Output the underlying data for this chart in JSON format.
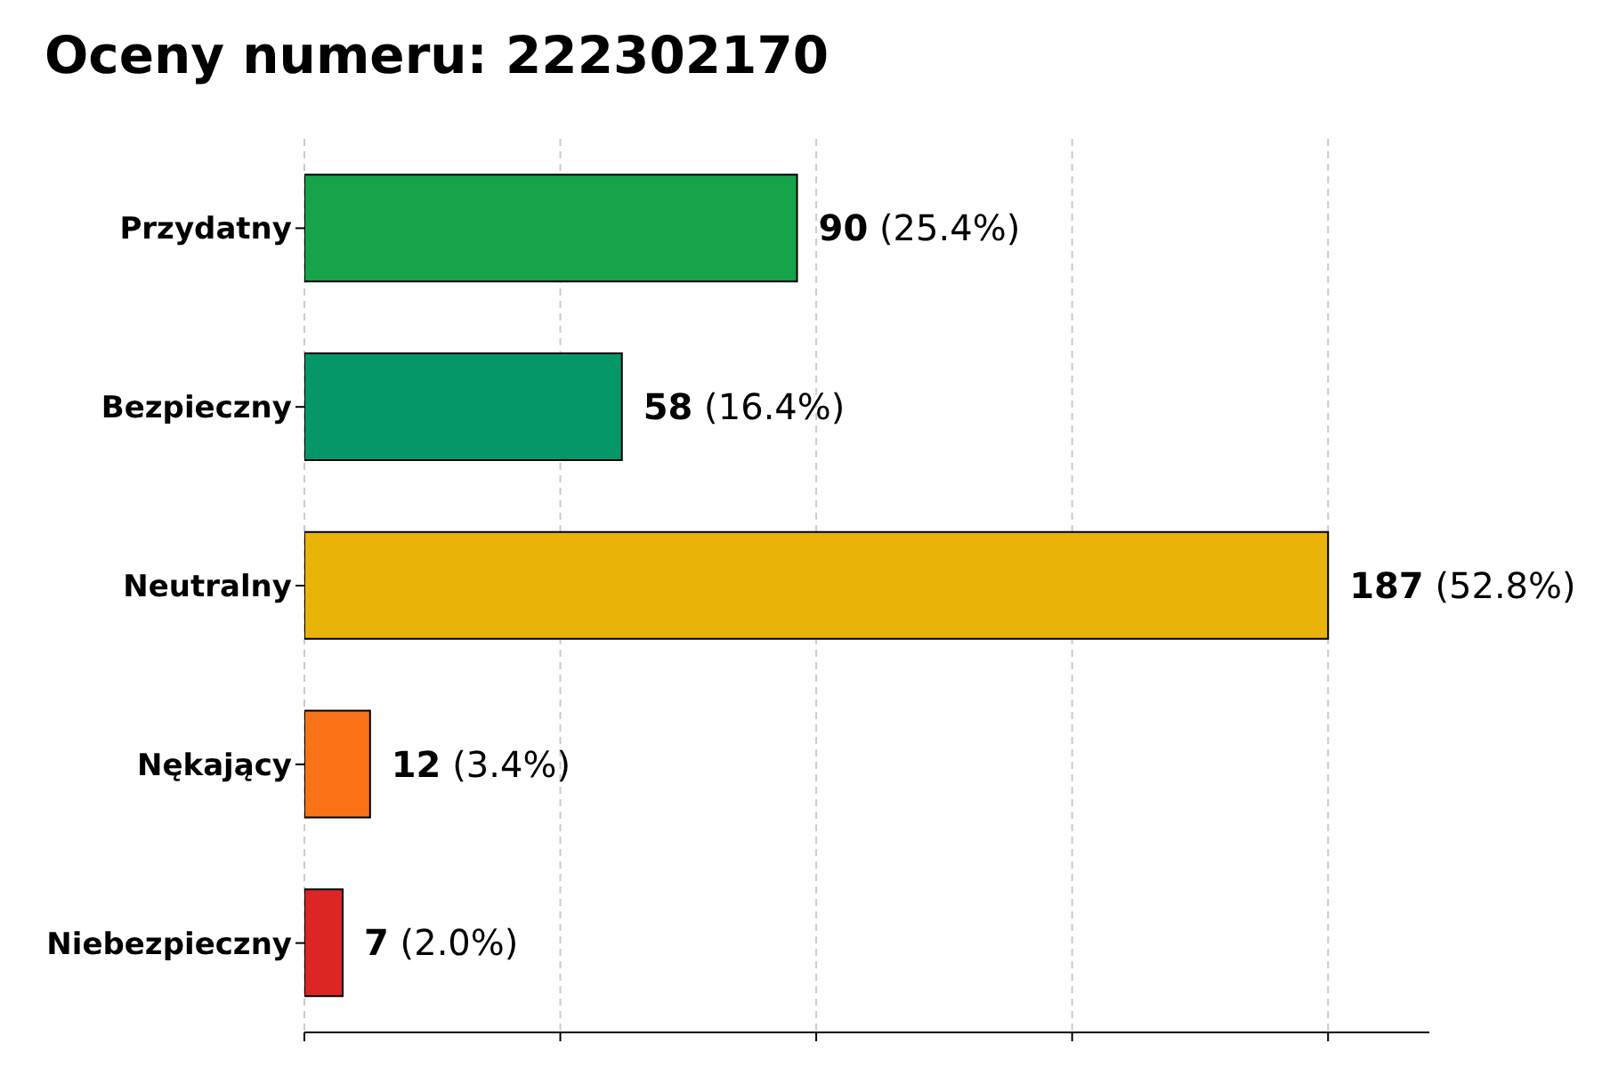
{
  "chart_data": {
    "type": "bar",
    "orientation": "horizontal",
    "title": "Oceny numeru: 222302170",
    "categories": [
      "Przydatny",
      "Bezpieczny",
      "Neutralny",
      "Nękający",
      "Niebezpieczny"
    ],
    "values": [
      90,
      58,
      187,
      12,
      7
    ],
    "colors": [
      "#16a34a",
      "#059669",
      "#eab308",
      "#f97316",
      "#dc2626"
    ],
    "value_labels": [
      "90 (25.4%)",
      "58 (16.4%)",
      "187 (52.8%)",
      "12 (3.4%)",
      "7 (2.0%)"
    ],
    "xlim": [
      0,
      205.5
    ],
    "xticks": [
      {
        "value": 0,
        "label": null
      },
      {
        "value": 46.75,
        "label": null
      },
      {
        "value": 93.5,
        "label": null
      },
      {
        "value": 140.25,
        "label": null
      },
      {
        "value": 187,
        "label": null
      }
    ],
    "tick_labels": "y",
    "grid": "x",
    "legend": false
  }
}
